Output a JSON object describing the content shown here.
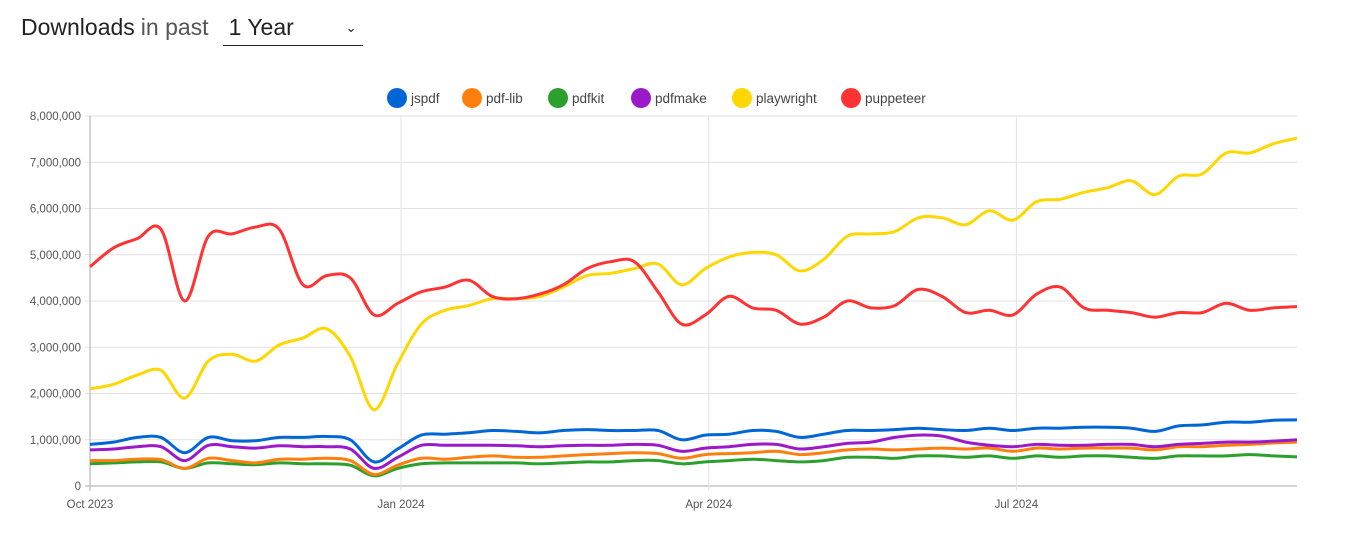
{
  "header": {
    "title_bold": "Downloads",
    "title_rest": "in past",
    "period_selected": "1 Year",
    "chevron_icon": "chevron-down-icon"
  },
  "chart_data": {
    "type": "line",
    "title": "",
    "xlabel": "",
    "ylabel": "",
    "ylim": [
      0,
      8000000
    ],
    "xlim": [
      "2023-10-01",
      "2024-09-22"
    ],
    "grid": true,
    "legend_position": "top",
    "y_ticks": [
      "0",
      "1,000,000",
      "2,000,000",
      "3,000,000",
      "4,000,000",
      "5,000,000",
      "6,000,000",
      "7,000,000",
      "8,000,000"
    ],
    "x_ticks": [
      {
        "date": "2023-10-01",
        "label": "Oct 2023"
      },
      {
        "date": "2024-01-01",
        "label": "Jan 2024"
      },
      {
        "date": "2024-04-01",
        "label": "Apr 2024"
      },
      {
        "date": "2024-07-01",
        "label": "Jul 2024"
      }
    ],
    "x": [
      "2023-10-01",
      "2023-10-08",
      "2023-10-15",
      "2023-10-22",
      "2023-10-29",
      "2023-11-05",
      "2023-11-12",
      "2023-11-19",
      "2023-11-26",
      "2023-12-03",
      "2023-12-10",
      "2023-12-17",
      "2023-12-24",
      "2023-12-31",
      "2024-01-07",
      "2024-01-14",
      "2024-01-21",
      "2024-01-28",
      "2024-02-04",
      "2024-02-11",
      "2024-02-18",
      "2024-02-25",
      "2024-03-03",
      "2024-03-10",
      "2024-03-17",
      "2024-03-24",
      "2024-03-31",
      "2024-04-07",
      "2024-04-14",
      "2024-04-21",
      "2024-04-28",
      "2024-05-05",
      "2024-05-12",
      "2024-05-19",
      "2024-05-26",
      "2024-06-02",
      "2024-06-09",
      "2024-06-16",
      "2024-06-23",
      "2024-06-30",
      "2024-07-07",
      "2024-07-14",
      "2024-07-21",
      "2024-07-28",
      "2024-08-04",
      "2024-08-11",
      "2024-08-18",
      "2024-08-25",
      "2024-09-01",
      "2024-09-08",
      "2024-09-15",
      "2024-09-22"
    ],
    "series": [
      {
        "name": "jspdf",
        "color": "#0066d6",
        "values": [
          900000,
          950000,
          1050000,
          1050000,
          720000,
          1050000,
          980000,
          980000,
          1050000,
          1050000,
          1070000,
          1000000,
          520000,
          800000,
          1100000,
          1120000,
          1150000,
          1200000,
          1180000,
          1150000,
          1200000,
          1220000,
          1200000,
          1200000,
          1200000,
          1000000,
          1100000,
          1120000,
          1200000,
          1180000,
          1050000,
          1120000,
          1200000,
          1200000,
          1220000,
          1250000,
          1220000,
          1200000,
          1250000,
          1200000,
          1250000,
          1250000,
          1270000,
          1270000,
          1250000,
          1180000,
          1300000,
          1320000,
          1380000,
          1380000,
          1420000,
          1430000
        ]
      },
      {
        "name": "pdf-lib",
        "color": "#ff7f0e",
        "values": [
          550000,
          550000,
          580000,
          570000,
          380000,
          600000,
          550000,
          500000,
          580000,
          580000,
          600000,
          550000,
          250000,
          450000,
          600000,
          580000,
          620000,
          650000,
          620000,
          620000,
          650000,
          680000,
          700000,
          720000,
          700000,
          600000,
          680000,
          700000,
          720000,
          750000,
          680000,
          720000,
          780000,
          800000,
          780000,
          800000,
          820000,
          800000,
          820000,
          750000,
          820000,
          800000,
          820000,
          820000,
          820000,
          780000,
          850000,
          850000,
          880000,
          900000,
          930000,
          950000
        ]
      },
      {
        "name": "pdfkit",
        "color": "#2ca02c",
        "values": [
          480000,
          500000,
          520000,
          520000,
          380000,
          500000,
          480000,
          460000,
          500000,
          480000,
          480000,
          450000,
          220000,
          380000,
          480000,
          500000,
          500000,
          500000,
          500000,
          480000,
          500000,
          520000,
          520000,
          550000,
          550000,
          480000,
          520000,
          550000,
          580000,
          550000,
          520000,
          550000,
          620000,
          620000,
          600000,
          650000,
          650000,
          620000,
          650000,
          600000,
          650000,
          620000,
          650000,
          650000,
          620000,
          600000,
          650000,
          650000,
          650000,
          680000,
          650000,
          630000
        ]
      },
      {
        "name": "pdfmake",
        "color": "#9b19c9",
        "values": [
          780000,
          800000,
          850000,
          850000,
          550000,
          880000,
          850000,
          820000,
          870000,
          850000,
          850000,
          800000,
          380000,
          620000,
          880000,
          880000,
          880000,
          880000,
          870000,
          850000,
          870000,
          880000,
          880000,
          900000,
          880000,
          750000,
          820000,
          850000,
          900000,
          900000,
          800000,
          850000,
          920000,
          950000,
          1050000,
          1100000,
          1080000,
          950000,
          880000,
          850000,
          900000,
          880000,
          880000,
          900000,
          900000,
          850000,
          900000,
          920000,
          950000,
          950000,
          970000,
          1000000
        ]
      },
      {
        "name": "playwright",
        "color": "#ffd700",
        "values": [
          2100000,
          2200000,
          2400000,
          2500000,
          1900000,
          2700000,
          2850000,
          2700000,
          3050000,
          3200000,
          3400000,
          2800000,
          1650000,
          2650000,
          3500000,
          3800000,
          3900000,
          4050000,
          4050000,
          4100000,
          4300000,
          4550000,
          4600000,
          4700000,
          4800000,
          4350000,
          4700000,
          4950000,
          5050000,
          5000000,
          4650000,
          4900000,
          5400000,
          5450000,
          5500000,
          5800000,
          5800000,
          5650000,
          5950000,
          5750000,
          6150000,
          6200000,
          6350000,
          6450000,
          6600000,
          6300000,
          6700000,
          6750000,
          7200000,
          7200000,
          7400000,
          7520000
        ]
      },
      {
        "name": "puppeteer",
        "color": "#ff3333",
        "values": [
          4740000,
          5150000,
          5350000,
          5550000,
          4000000,
          5400000,
          5450000,
          5600000,
          5550000,
          4350000,
          4550000,
          4500000,
          3700000,
          3950000,
          4200000,
          4300000,
          4450000,
          4100000,
          4050000,
          4150000,
          4350000,
          4700000,
          4850000,
          4850000,
          4200000,
          3500000,
          3700000,
          4100000,
          3850000,
          3800000,
          3500000,
          3650000,
          4000000,
          3850000,
          3900000,
          4250000,
          4100000,
          3750000,
          3800000,
          3700000,
          4150000,
          4300000,
          3850000,
          3800000,
          3750000,
          3650000,
          3750000,
          3750000,
          3950000,
          3800000,
          3850000,
          3880000
        ]
      }
    ]
  }
}
